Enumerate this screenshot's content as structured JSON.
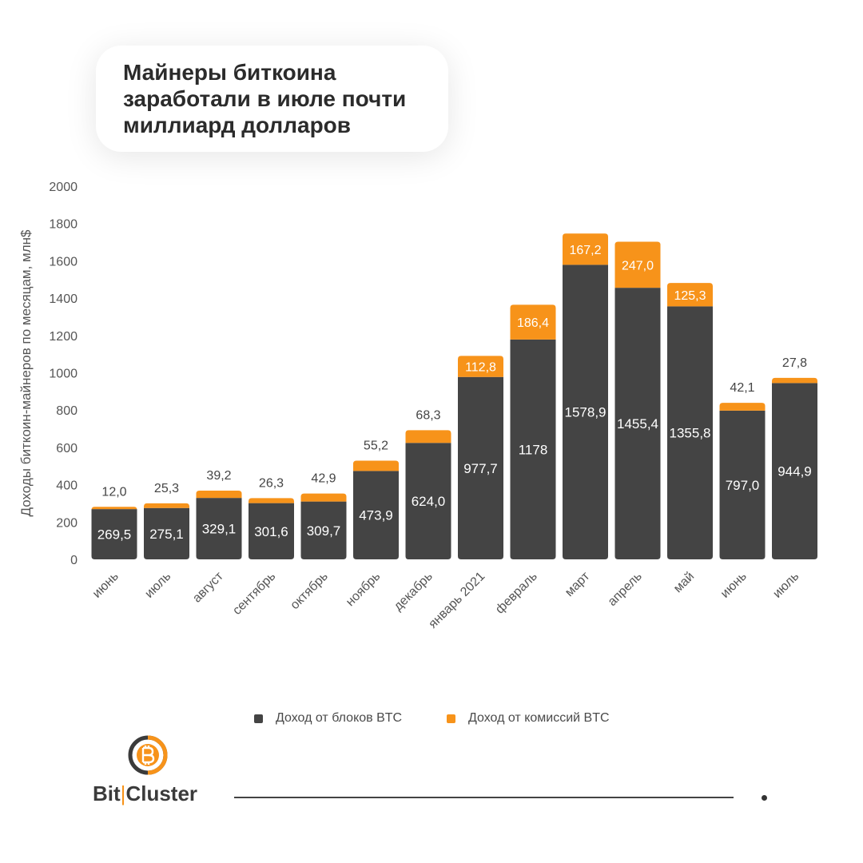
{
  "title": "Майнеры биткоина заработали в июле почти миллиард долларов",
  "brand": {
    "name_left": "Bit",
    "name_sep": "|",
    "name_right": "Cluster"
  },
  "colors": {
    "block": "#444444",
    "fee": "#f7931a"
  },
  "chart_data": {
    "type": "bar",
    "stacked": true,
    "title": "Майнеры биткоина заработали в июле почти миллиард долларов",
    "ylabel": "Доходы биткоин-майнеров по месяцам, млн$",
    "ylim": [
      0,
      2000
    ],
    "yticks": [
      0,
      200,
      400,
      600,
      800,
      1000,
      1200,
      1400,
      1600,
      1800,
      2000
    ],
    "grid": false,
    "legend_position": "bottom",
    "categories": [
      "июнь",
      "июль",
      "август",
      "сентябрь",
      "октябрь",
      "ноябрь",
      "декабрь",
      "январь 2021",
      "февраль",
      "март",
      "апрель",
      "май",
      "июнь",
      "июль"
    ],
    "series": [
      {
        "name": "Доход от блоков BTC",
        "values": [
          269.5,
          275.1,
          329.1,
          301.6,
          309.7,
          473.9,
          624.0,
          977.7,
          1178,
          1578.9,
          1455.4,
          1355.8,
          797.0,
          944.9
        ],
        "labels": [
          "269,5",
          "275,1",
          "329,1",
          "301,6",
          "309,7",
          "473,9",
          "624,0",
          "977,7",
          "1178",
          "1578,9",
          "1455,4",
          "1355,8",
          "797,0",
          "944,9"
        ]
      },
      {
        "name": "Доход от комиссий BTC",
        "values": [
          12.0,
          25.3,
          39.2,
          26.3,
          42.9,
          55.2,
          68.3,
          112.8,
          186.4,
          167.2,
          247.0,
          125.3,
          42.1,
          27.8
        ],
        "labels": [
          "12,0",
          "25,3",
          "39,2",
          "26,3",
          "42,9",
          "55,2",
          "68,3",
          "112,8",
          "186,4",
          "167,2",
          "247,0",
          "125,3",
          "42,1",
          "27,8"
        ]
      }
    ]
  }
}
